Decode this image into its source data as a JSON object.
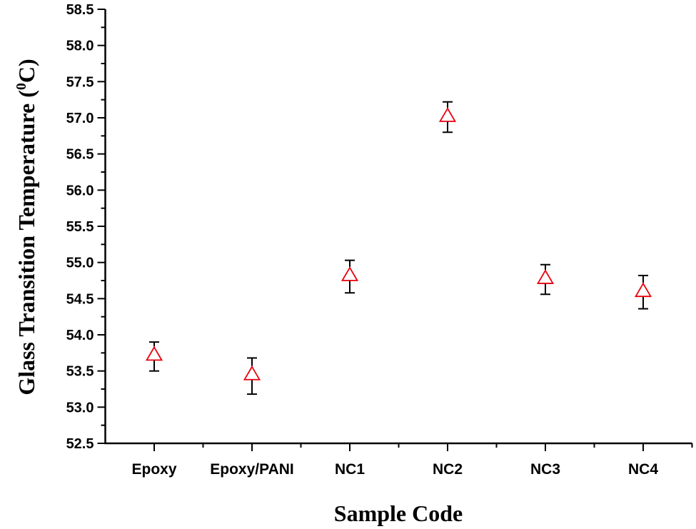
{
  "chart_data": {
    "type": "scatter",
    "title": "",
    "xlabel": "Sample Code",
    "ylabel": "Glass Transition Temperature (",
    "ylabel_sup": "0",
    "ylabel_unit": "C)",
    "categories": [
      "Epoxy",
      "Epoxy/PANI",
      "NC1",
      "NC2",
      "NC3",
      "NC4"
    ],
    "values": [
      53.72,
      53.45,
      54.82,
      57.02,
      54.78,
      54.6
    ],
    "error_upper": [
      53.9,
      53.68,
      55.03,
      57.22,
      54.97,
      54.82
    ],
    "error_lower": [
      53.5,
      53.18,
      54.58,
      56.8,
      54.56,
      54.36
    ],
    "ylim": [
      52.5,
      58.5
    ],
    "yticks": [
      "52.5",
      "53.0",
      "53.5",
      "54.0",
      "54.5",
      "55.0",
      "55.5",
      "56.0",
      "56.5",
      "57.0",
      "57.5",
      "58.0",
      "58.5"
    ],
    "marker": "open-triangle",
    "marker_color": "#e8000b",
    "errorbar_color": "#000000",
    "grid": false,
    "legend": "none"
  }
}
